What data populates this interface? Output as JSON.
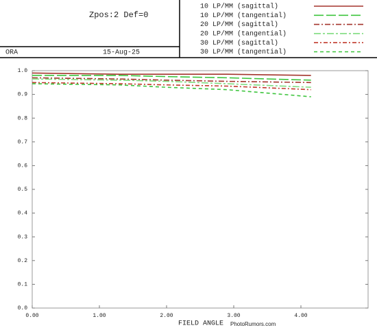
{
  "chart_data": {
    "type": "line",
    "header": {
      "config": "Zpos:2 Def=0",
      "lens": "ORA",
      "date": "15-Aug-25"
    },
    "xlabel": "FIELD ANGLE",
    "watermark": "PhotoRumors.com",
    "x": [
      0,
      1.3,
      2.0,
      2.9,
      4.15
    ],
    "series": [
      {
        "name": "10 LP/MM (sagittal)",
        "color": "#a3342c",
        "dash": "solid",
        "values": [
          0.99,
          0.985,
          0.985,
          0.985,
          0.98
        ]
      },
      {
        "name": "10 LP/MM (tangential)",
        "color": "#3cc43c",
        "dash": "14 4",
        "values": [
          0.98,
          0.98,
          0.975,
          0.97,
          0.96
        ]
      },
      {
        "name": "20 LP/MM (sagittal)",
        "color": "#a3342c",
        "dash": "8 3 2 3",
        "values": [
          0.97,
          0.965,
          0.96,
          0.955,
          0.95
        ]
      },
      {
        "name": "20 LP/MM (tangential)",
        "color": "#7fdc7f",
        "dash": "10 3 3 3",
        "values": [
          0.965,
          0.96,
          0.955,
          0.945,
          0.93
        ]
      },
      {
        "name": "30 LP/MM (sagittal)",
        "color": "#c0392b",
        "dash": "6 3 2 3",
        "values": [
          0.95,
          0.945,
          0.94,
          0.935,
          0.92
        ]
      },
      {
        "name": "30 LP/MM (tangential)",
        "color": "#3cc43c",
        "dash": "5 4",
        "values": [
          0.945,
          0.94,
          0.93,
          0.92,
          0.89
        ]
      }
    ],
    "xlim": [
      0,
      5
    ],
    "ylim": [
      0,
      1
    ],
    "xticks": [
      {
        "value": 0,
        "label": "0.00"
      },
      {
        "value": 1,
        "label": "1.00"
      },
      {
        "value": 2,
        "label": "2.00"
      },
      {
        "value": 3,
        "label": "3.00"
      },
      {
        "value": 4,
        "label": "4.00"
      }
    ],
    "yticks": [
      {
        "value": 0,
        "label": "0.0"
      },
      {
        "value": 0.1,
        "label": "0.1"
      },
      {
        "value": 0.2,
        "label": "0.2"
      },
      {
        "value": 0.3,
        "label": "0.3"
      },
      {
        "value": 0.4,
        "label": "0.4"
      },
      {
        "value": 0.5,
        "label": "0.5"
      },
      {
        "value": 0.6,
        "label": "0.6"
      },
      {
        "value": 0.7,
        "label": "0.7"
      },
      {
        "value": 0.8,
        "label": "0.8"
      },
      {
        "value": 0.9,
        "label": "0.9"
      },
      {
        "value": 1,
        "label": "1.0"
      }
    ]
  }
}
